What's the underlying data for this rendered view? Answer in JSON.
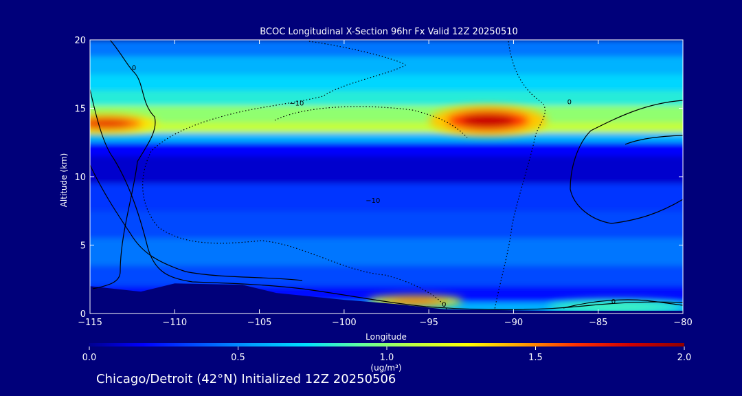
{
  "chart_data": {
    "type": "heatmap",
    "title": "BCOC Longitudinal X-Section 96hr  Fx Valid 12Z 20250510",
    "xlabel": "Longitude",
    "ylabel": "Altitude (km)",
    "xlim": [
      -115,
      -80
    ],
    "ylim": [
      0,
      20
    ],
    "x_ticks": [
      -115,
      -110,
      -105,
      -100,
      -95,
      -90,
      -85,
      -80
    ],
    "x_tick_labels": [
      "−115",
      "−110",
      "−105",
      "−100",
      "−95",
      "−90",
      "−85",
      "−80"
    ],
    "y_ticks": [
      0,
      5,
      10,
      15,
      20
    ],
    "y_tick_labels": [
      "0",
      "5",
      "10",
      "15",
      "20"
    ],
    "colorbar": {
      "min": 0.0,
      "max": 2.0,
      "ticks": [
        0.0,
        0.5,
        1.0,
        1.5,
        2.0
      ],
      "tick_labels": [
        "0.0",
        "0.5",
        "1.0",
        "1.5",
        "2.0"
      ],
      "unit_label": "(ug/m³)",
      "colors": [
        "#000090",
        "#0000ff",
        "#0050ff",
        "#00a0ff",
        "#00e0ff",
        "#60ffa0",
        "#c0ff40",
        "#ffff00",
        "#ffa000",
        "#ff3000",
        "#d00000",
        "#900000"
      ]
    },
    "contour_labels": [
      {
        "text": "0",
        "lon": -112.4,
        "alt": 17.8
      },
      {
        "text": "−10",
        "lon": -102.8,
        "alt": 15.2
      },
      {
        "text": "−10",
        "lon": -98.3,
        "alt": 8.1
      },
      {
        "text": "0",
        "lon": -86.7,
        "alt": 15.3
      },
      {
        "text": "0",
        "lon": -84.1,
        "alt": 0.7
      },
      {
        "text": "0",
        "lon": -94.1,
        "alt": 0.5
      }
    ],
    "bands": [
      {
        "alt0": 0.0,
        "alt1": 0.8,
        "value": 0.6
      },
      {
        "alt0": 0.8,
        "alt1": 2.0,
        "value": 0.2
      },
      {
        "alt0": 2.0,
        "alt1": 3.5,
        "value": 0.35
      },
      {
        "alt0": 3.5,
        "alt1": 5.5,
        "value": 0.45
      },
      {
        "alt0": 5.5,
        "alt1": 7.5,
        "value": 0.35
      },
      {
        "alt0": 7.5,
        "alt1": 9.5,
        "value": 0.3
      },
      {
        "alt0": 9.5,
        "alt1": 11.5,
        "value": 0.1
      },
      {
        "alt0": 11.5,
        "alt1": 12.5,
        "value": 0.18
      },
      {
        "alt0": 12.5,
        "alt1": 13.2,
        "value": 0.6
      },
      {
        "alt0": 13.2,
        "alt1": 14.0,
        "value": 1.1
      },
      {
        "alt0": 14.0,
        "alt1": 15.2,
        "value": 1.0
      },
      {
        "alt0": 15.2,
        "alt1": 16.3,
        "value": 0.8
      },
      {
        "alt0": 16.3,
        "alt1": 17.5,
        "value": 0.7
      },
      {
        "alt0": 17.5,
        "alt1": 18.8,
        "value": 0.6
      },
      {
        "alt0": 18.8,
        "alt1": 20.0,
        "value": 0.45
      }
    ],
    "hotspots": [
      {
        "lon": -91.5,
        "alt": 14.1,
        "rlon": 3.5,
        "ralt": 1.1,
        "value": 1.85
      },
      {
        "lon": -114.0,
        "alt": 13.9,
        "rlon": 3.0,
        "ralt": 0.7,
        "value": 1.75
      },
      {
        "lon": -95.8,
        "alt": 0.9,
        "rlon": 2.8,
        "ralt": 0.4,
        "value": 1.6
      },
      {
        "lon": -84.0,
        "alt": 0.5,
        "rlon": 4.0,
        "ralt": 0.5,
        "value": 0.85
      }
    ],
    "terrain": [
      {
        "lon": -115,
        "alt": 2.0
      },
      {
        "lon": -112,
        "alt": 1.6
      },
      {
        "lon": -110,
        "alt": 2.2
      },
      {
        "lon": -106,
        "alt": 2.1
      },
      {
        "lon": -104,
        "alt": 1.5
      },
      {
        "lon": -100,
        "alt": 1.0
      },
      {
        "lon": -97,
        "alt": 0.7
      },
      {
        "lon": -94,
        "alt": 0.3
      },
      {
        "lon": -88,
        "alt": 0.2
      },
      {
        "lon": -80,
        "alt": 0.2
      }
    ]
  },
  "footer": {
    "caption": "Chicago/Detroit (42°N) Initialized 12Z 20250506"
  }
}
